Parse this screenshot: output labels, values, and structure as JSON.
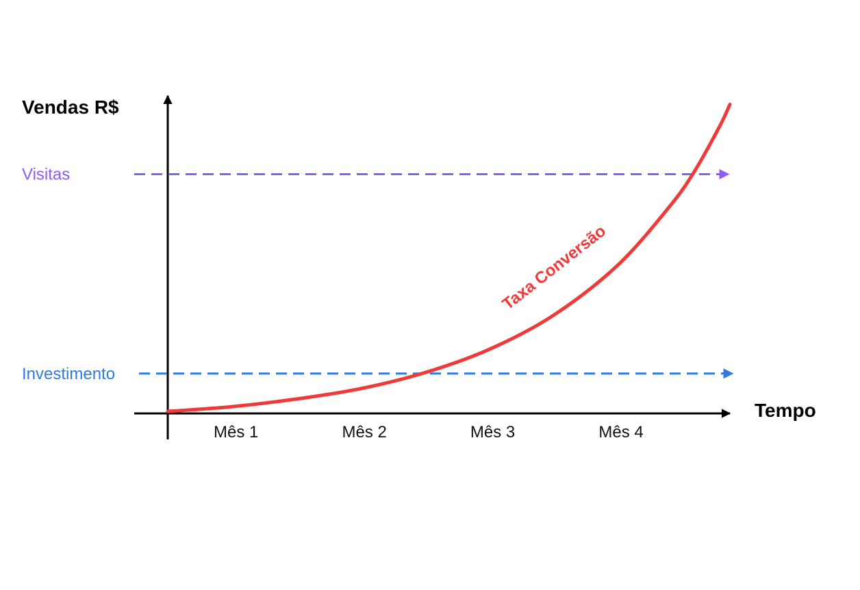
{
  "chart_data": {
    "type": "line",
    "ylabel": "Vendas R$",
    "xlabel": "Tempo",
    "categories": [
      "Mês 1",
      "Mês 2",
      "Mês 3",
      "Mês 4"
    ],
    "xlim": [
      0,
      4.38
    ],
    "ylim": [
      0,
      8
    ],
    "grid": false,
    "reference_lines": [
      {
        "label": "Visitas",
        "y": 6,
        "color": "#8b5cf6",
        "style": "dashed"
      },
      {
        "label": "Investimento",
        "y": 1,
        "color": "#2f7be0",
        "style": "dashed"
      }
    ],
    "series": [
      {
        "name": "Taxa Conversão",
        "color": "#ef3a3a",
        "x": [
          0,
          0.5,
          1,
          1.5,
          2,
          2.5,
          3,
          3.5,
          3.9,
          4.1,
          4.3,
          4.38
        ],
        "y": [
          0.05,
          0.17,
          0.36,
          0.62,
          1.02,
          1.6,
          2.45,
          3.7,
          5.15,
          6.05,
          7.2,
          7.75
        ]
      }
    ],
    "annotations": [
      {
        "text": "Taxa Conversão",
        "color": "#ef3a3a"
      }
    ]
  }
}
